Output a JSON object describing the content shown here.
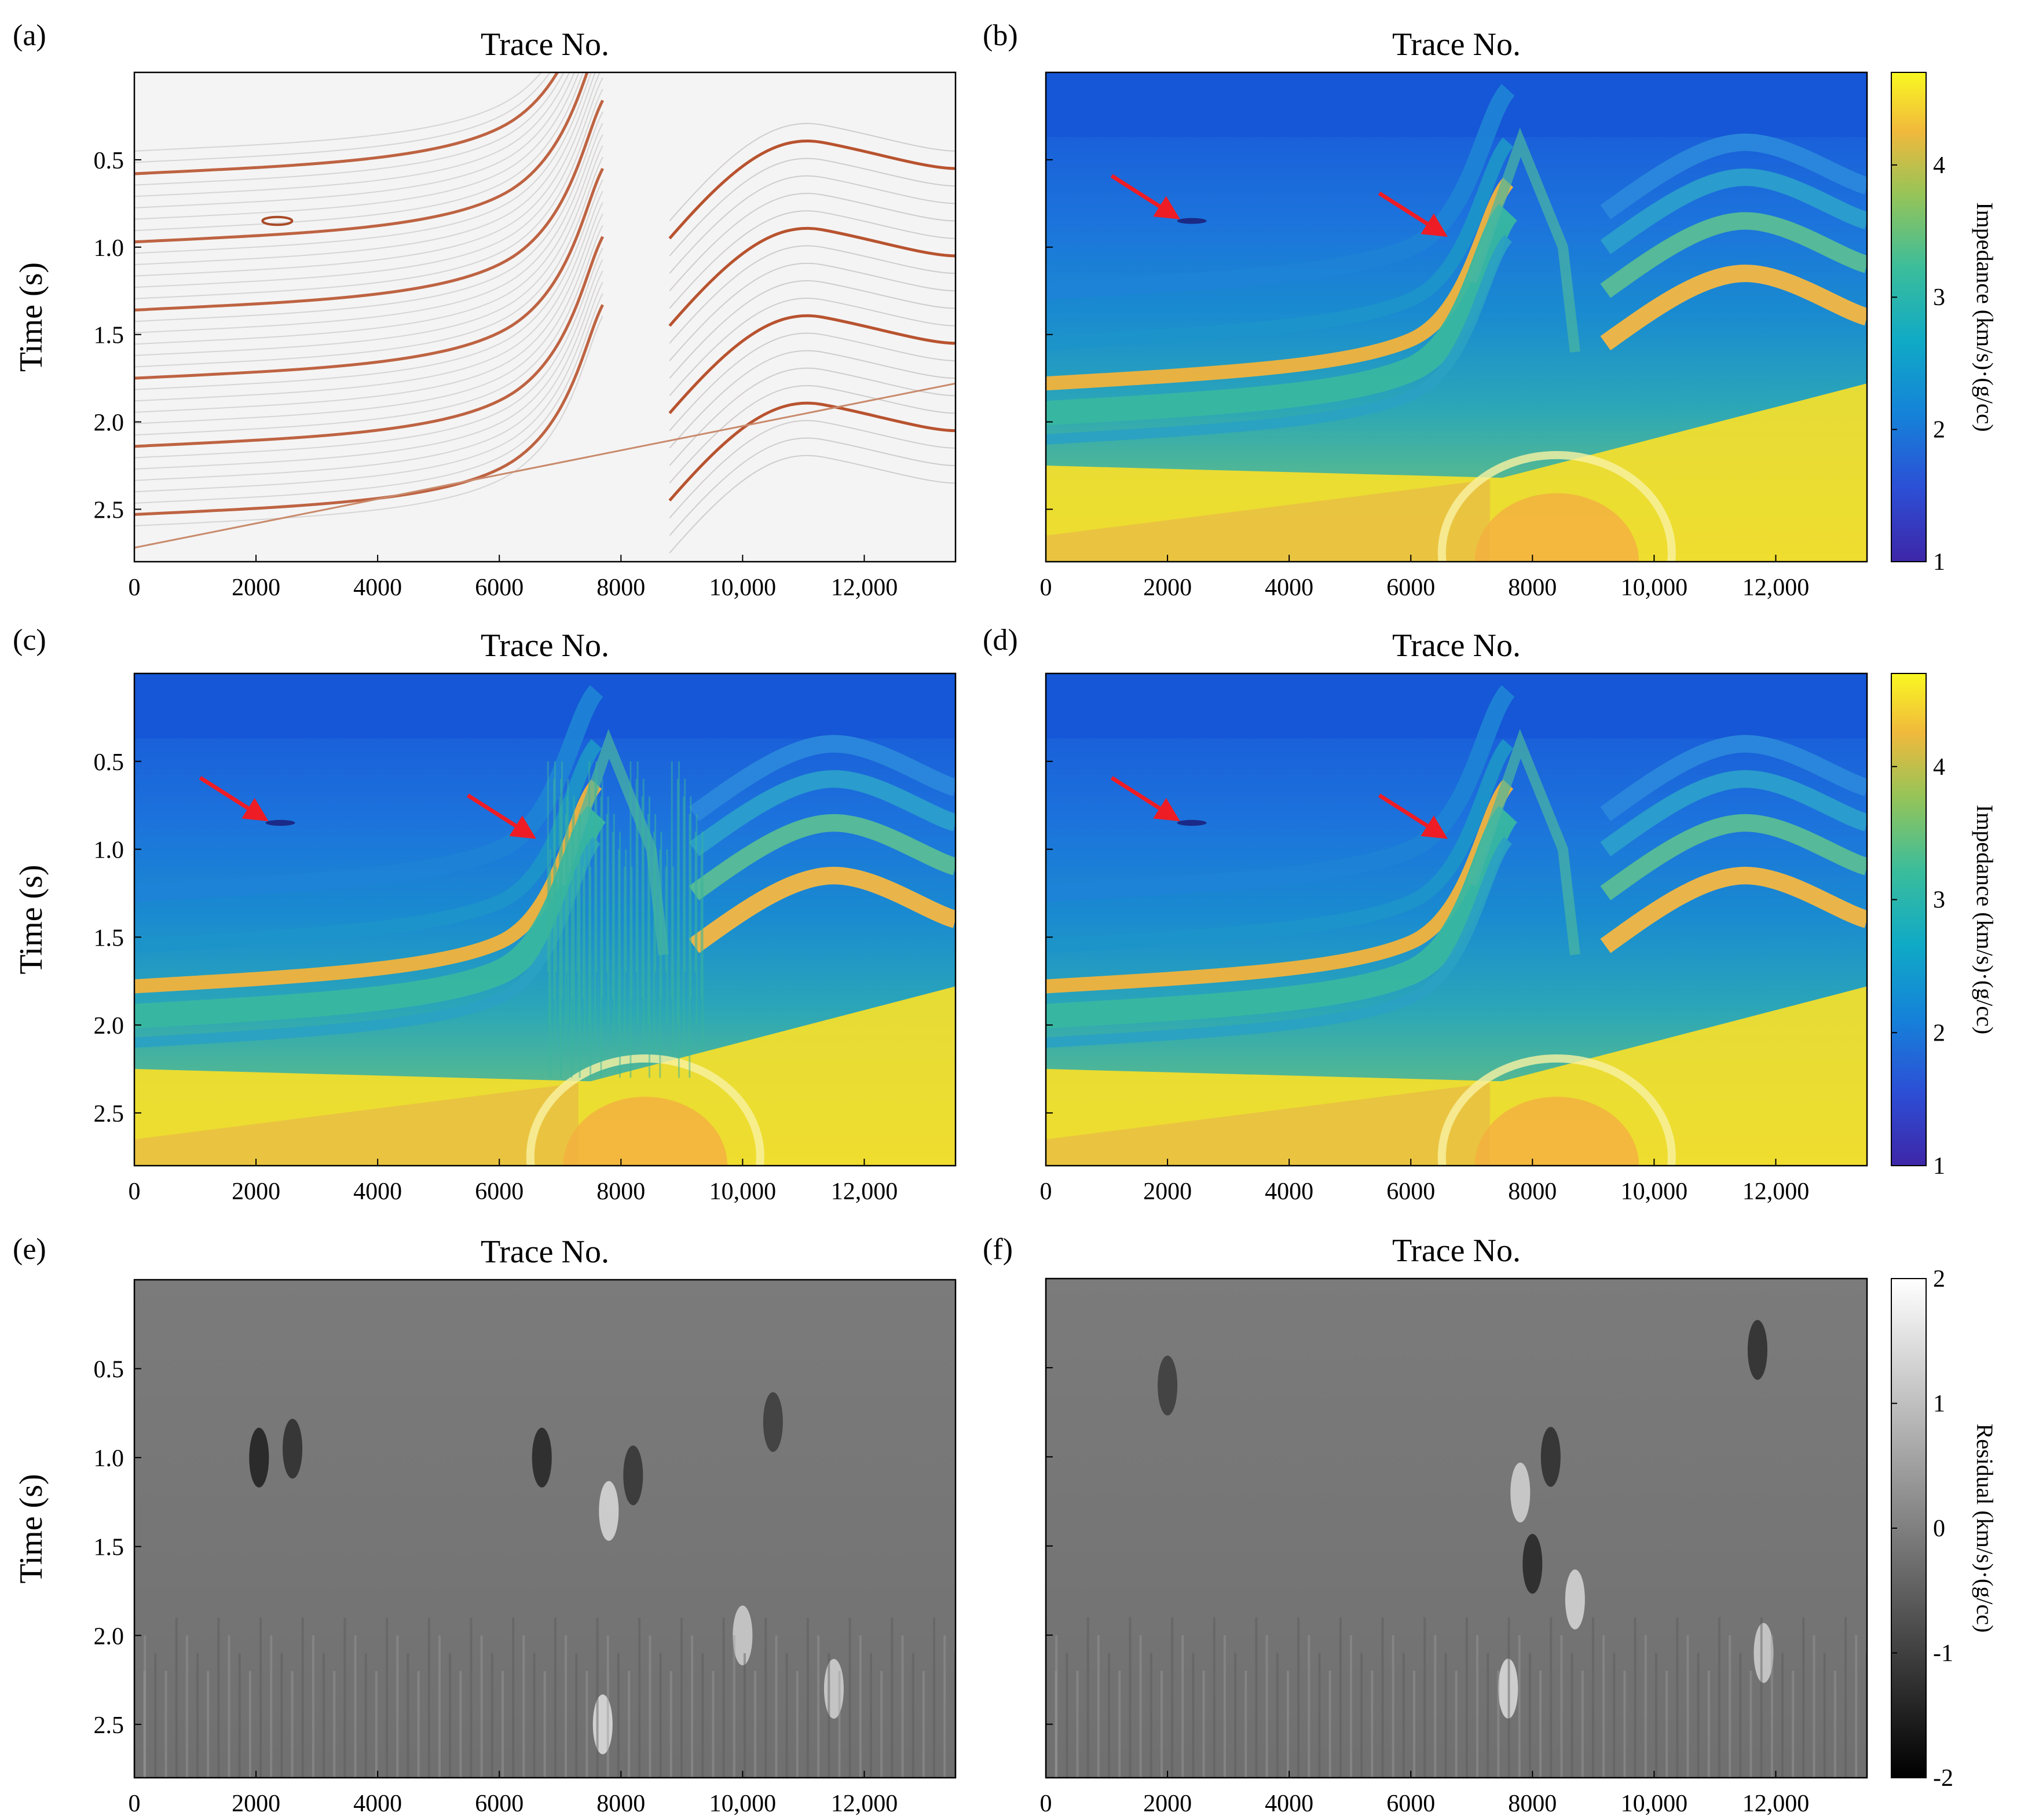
{
  "chart_data": [
    {
      "type": "heatmap",
      "panel_label": "(a)",
      "title": "Trace No.",
      "ylabel": "Time (s)",
      "xlim": [
        0,
        13500
      ],
      "ylim": [
        0,
        2.8
      ],
      "x_ticks": [
        "0",
        "2000",
        "4000",
        "6000",
        "8000",
        "10,000",
        "12,000"
      ],
      "y_ticks": [
        "0.5",
        "1.0",
        "1.5",
        "2.0",
        "2.5"
      ],
      "colormap": "seismic-reflectivity",
      "annotations": []
    },
    {
      "type": "heatmap",
      "panel_label": "(b)",
      "title": "Trace No.",
      "ylabel": "",
      "xlim": [
        0,
        13500
      ],
      "ylim": [
        0,
        2.8
      ],
      "x_ticks": [
        "0",
        "2000",
        "4000",
        "6000",
        "8000",
        "10,000",
        "12,000"
      ],
      "y_ticks": [
        "",
        "",
        "",
        "",
        ""
      ],
      "colormap": "parula",
      "colorbar": {
        "label": "Impedance (km/s)·(g/cc)",
        "ticks": [
          "1",
          "2",
          "3",
          "4"
        ],
        "range": [
          1,
          4.7
        ]
      },
      "annotations": [
        {
          "type": "arrow",
          "points_to_trace": 2300,
          "points_to_time": 0.85
        },
        {
          "type": "arrow",
          "points_to_trace": 6700,
          "points_to_time": 0.95
        }
      ]
    },
    {
      "type": "heatmap",
      "panel_label": "(c)",
      "title": "Trace No.",
      "ylabel": "Time (s)",
      "xlim": [
        0,
        13500
      ],
      "ylim": [
        0,
        2.8
      ],
      "x_ticks": [
        "0",
        "2000",
        "4000",
        "6000",
        "8000",
        "10,000",
        "12,000"
      ],
      "y_ticks": [
        "0.5",
        "1.0",
        "1.5",
        "2.0",
        "2.5"
      ],
      "colormap": "parula",
      "annotations": [
        {
          "type": "arrow",
          "points_to_trace": 2300,
          "points_to_time": 0.85
        },
        {
          "type": "arrow",
          "points_to_trace": 6700,
          "points_to_time": 0.95
        }
      ]
    },
    {
      "type": "heatmap",
      "panel_label": "(d)",
      "title": "Trace No.",
      "ylabel": "",
      "xlim": [
        0,
        13500
      ],
      "ylim": [
        0,
        2.8
      ],
      "x_ticks": [
        "0",
        "2000",
        "4000",
        "6000",
        "8000",
        "10,000",
        "12,000"
      ],
      "y_ticks": [
        "",
        "",
        "",
        "",
        ""
      ],
      "colormap": "parula",
      "colorbar": {
        "label": "Impedance (km/s)·(g/cc)",
        "ticks": [
          "1",
          "2",
          "3",
          "4"
        ],
        "range": [
          1,
          4.7
        ]
      },
      "annotations": [
        {
          "type": "arrow",
          "points_to_trace": 2300,
          "points_to_time": 0.85
        },
        {
          "type": "arrow",
          "points_to_trace": 6700,
          "points_to_time": 0.95
        }
      ]
    },
    {
      "type": "heatmap",
      "panel_label": "(e)",
      "title": "Trace No.",
      "ylabel": "Time (s)",
      "xlim": [
        0,
        13500
      ],
      "ylim": [
        0,
        2.8
      ],
      "x_ticks": [
        "0",
        "2000",
        "4000",
        "6000",
        "8000",
        "10,000",
        "12,000"
      ],
      "y_ticks": [
        "0.5",
        "1.0",
        "1.5",
        "2.0",
        "2.5"
      ],
      "colormap": "gray",
      "annotations": []
    },
    {
      "type": "heatmap",
      "panel_label": "(f)",
      "title": "Trace No.",
      "ylabel": "",
      "xlim": [
        0,
        13500
      ],
      "ylim": [
        0,
        2.8
      ],
      "x_ticks": [
        "0",
        "2000",
        "4000",
        "6000",
        "8000",
        "10,000",
        "12,000"
      ],
      "y_ticks": [
        "",
        "",
        "",
        "",
        ""
      ],
      "colormap": "gray",
      "colorbar": {
        "label": "Residual (km/s)·(g/cc)",
        "ticks": [
          "2",
          "1",
          "0",
          "-1",
          "-2"
        ],
        "range": [
          -2,
          2
        ]
      },
      "annotations": []
    }
  ]
}
